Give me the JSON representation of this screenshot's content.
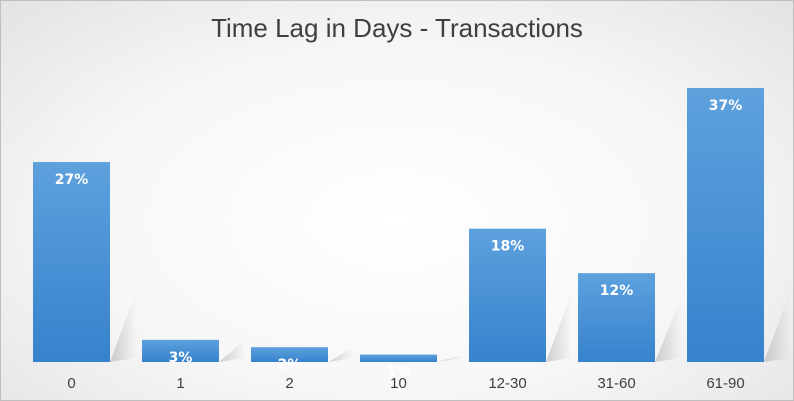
{
  "chart_data": {
    "type": "bar",
    "title": "Time Lag in Days - Transactions",
    "xlabel": "",
    "ylabel": "",
    "categories": [
      "0",
      "1",
      "2",
      "10",
      "12-30",
      "31-60",
      "61-90"
    ],
    "values": [
      27,
      3,
      2,
      1,
      18,
      12,
      37
    ],
    "data_labels": [
      "27%",
      "3%",
      "2%",
      "1%",
      "18%",
      "12%",
      "37%"
    ],
    "value_unit": "%",
    "ylim": [
      0,
      37
    ],
    "grid": false,
    "legend": "none",
    "colors": {
      "bar_top": "#5da1dd",
      "bar_bottom": "#3782cd",
      "label": "#ffffff",
      "tick_text": "#404040"
    }
  }
}
